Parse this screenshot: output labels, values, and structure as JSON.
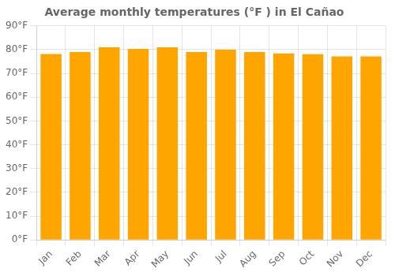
{
  "chart_data": {
    "type": "bar",
    "title": "Average monthly temperatures (°F ) in El Cañao",
    "categories": [
      "Jan",
      "Feb",
      "Mar",
      "Apr",
      "May",
      "Jun",
      "Jul",
      "Aug",
      "Sep",
      "Oct",
      "Nov",
      "Dec"
    ],
    "values": [
      78.2,
      79.0,
      81.0,
      80.3,
      81.0,
      79.0,
      80.0,
      79.0,
      78.4,
      78.1,
      77.2,
      77.2
    ],
    "color": "#FFA500",
    "ylim": [
      0,
      90
    ],
    "yticks": [
      {
        "value": 0,
        "label": "0°F"
      },
      {
        "value": 10,
        "label": "10°F"
      },
      {
        "value": 20,
        "label": "20°F"
      },
      {
        "value": 30,
        "label": "30°F"
      },
      {
        "value": 40,
        "label": "40°F"
      },
      {
        "value": 50,
        "label": "50°F"
      },
      {
        "value": 60,
        "label": "60°F"
      },
      {
        "value": 70,
        "label": "70°F"
      },
      {
        "value": 80,
        "label": "80°F"
      },
      {
        "value": 90,
        "label": "90°F"
      }
    ],
    "grid": true
  }
}
